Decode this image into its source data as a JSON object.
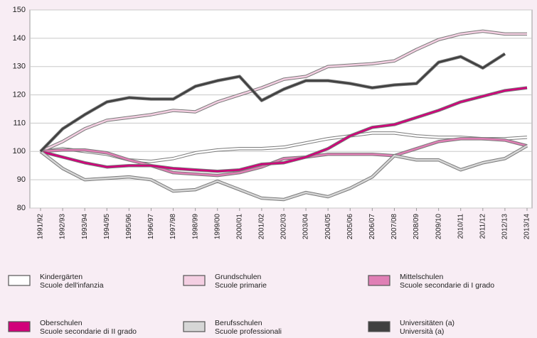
{
  "chart_data": {
    "type": "line",
    "categories": [
      "1991/92",
      "1992/93",
      "1993/94",
      "1994/95",
      "1995/96",
      "1996/97",
      "1997/98",
      "1998/99",
      "1999/00",
      "2000/01",
      "2001/02",
      "2002/03",
      "2003/04",
      "2004/05",
      "2005/06",
      "2006/07",
      "2007/08",
      "2008/09",
      "2009/10",
      "2010/11",
      "2011/12",
      "2012/13",
      "2013/14"
    ],
    "ylim": [
      80,
      150
    ],
    "yticks": [
      80,
      90,
      100,
      110,
      120,
      130,
      140,
      150
    ],
    "grid": true,
    "series": [
      {
        "name": [
          "Kindergärten",
          "Scuole dell'infanzia"
        ],
        "color": "#ffffff",
        "values": [
          100,
          101,
          100,
          99,
          97,
          96.5,
          97.5,
          99.5,
          100.5,
          101,
          101,
          101.5,
          103,
          104.5,
          105.5,
          106.5,
          106.5,
          105.5,
          105,
          105,
          104.5,
          104.5,
          105
        ]
      },
      {
        "name": [
          "Grundschulen",
          "Scuole primarie"
        ],
        "color": "#f4cfe2",
        "values": [
          100,
          103.5,
          108,
          111,
          112,
          113,
          114.5,
          114,
          117.5,
          120,
          122.5,
          125.5,
          126.5,
          130,
          130.5,
          131,
          132,
          136,
          139.5,
          141.5,
          142.5,
          141.5,
          141.5
        ]
      },
      {
        "name": [
          "Mittelschulen",
          "Scuole secondarie di I grado"
        ],
        "color": "#e07fb5",
        "values": [
          100,
          100.5,
          100.5,
          99.5,
          97,
          95,
          92.5,
          92,
          91.5,
          92.5,
          94.5,
          97.5,
          98,
          99,
          99,
          99,
          98.5,
          101,
          103.5,
          104.5,
          104.5,
          104,
          102
        ]
      },
      {
        "name": [
          "Oberschulen",
          "Scuole secondarie di II grado"
        ],
        "color": "#d1007a",
        "values": [
          100,
          98,
          96,
          94.5,
          95,
          95,
          94,
          93.5,
          93,
          93.5,
          95.5,
          96,
          98,
          101,
          105.5,
          108.5,
          109.5,
          112,
          114.5,
          117.5,
          119.5,
          121.5,
          122.5
        ]
      },
      {
        "name": [
          "Berufsschulen",
          "Scuole professionali"
        ],
        "color": "#d6d6d6",
        "values": [
          100,
          94,
          90,
          90.5,
          91,
          90,
          86,
          86.5,
          89.5,
          86.5,
          83.5,
          83,
          85.5,
          84,
          87,
          91,
          98.5,
          97,
          97,
          93.5,
          96,
          97.5,
          102
        ]
      },
      {
        "name": [
          "Universitäten (a)",
          "Università (a)"
        ],
        "color": "#404040",
        "values": [
          100,
          108,
          113,
          117.5,
          119,
          118.5,
          118.5,
          123,
          125,
          126.5,
          118,
          122,
          125,
          125,
          124,
          122.5,
          123.5,
          124,
          131.5,
          133.5,
          129.5,
          134.5,
          null
        ]
      }
    ]
  }
}
